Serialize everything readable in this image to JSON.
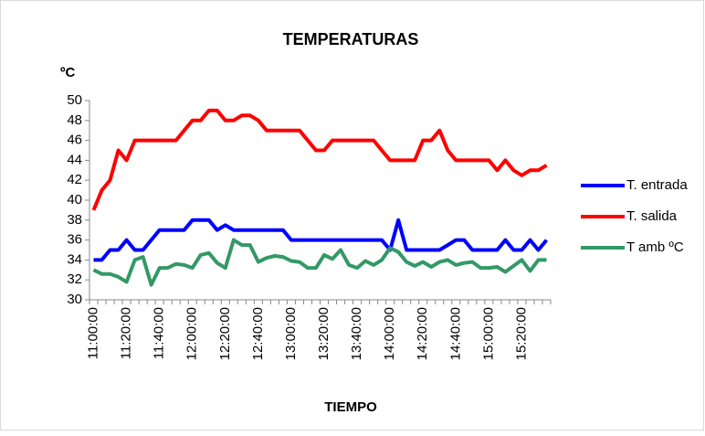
{
  "chart_data": {
    "type": "line",
    "title": "TEMPERATURAS",
    "y_axis_label": "ºC",
    "x_axis_label": "TIEMPO",
    "categories": [
      "11:00:00",
      null,
      null,
      null,
      "11:20:00",
      null,
      null,
      null,
      "11:40:00",
      null,
      null,
      null,
      "12:00:00",
      null,
      null,
      null,
      "12:20:00",
      null,
      null,
      null,
      "12:40:00",
      null,
      null,
      null,
      "13:00:00",
      null,
      null,
      null,
      "13:20:00",
      null,
      null,
      null,
      "13:40:00",
      null,
      null,
      null,
      "14:00:00",
      null,
      null,
      null,
      "14:20:00",
      null,
      null,
      null,
      "14:40:00",
      null,
      null,
      null,
      "15:00:00",
      null,
      null,
      null,
      "15:20:00",
      null,
      null,
      null
    ],
    "series": [
      {
        "name": "T. entrada",
        "color": "#0000ff",
        "values": [
          34,
          34,
          35,
          35,
          36,
          35,
          35,
          36,
          37,
          37,
          37,
          37,
          38,
          38,
          38,
          37,
          37.5,
          37,
          37,
          37,
          37,
          37,
          37,
          37,
          36,
          36,
          36,
          36,
          36,
          36,
          36,
          36,
          36,
          36,
          36,
          36,
          35,
          38,
          35,
          35,
          35,
          35,
          35,
          35.5,
          36,
          36,
          35,
          35,
          35,
          35,
          36,
          35,
          35,
          36,
          35,
          36
        ]
      },
      {
        "name": "T. salida",
        "color": "#ff0000",
        "values": [
          39,
          41,
          42,
          45,
          44,
          46,
          46,
          46,
          46,
          46,
          46,
          47,
          48,
          48,
          49,
          49,
          48,
          48,
          48.5,
          48.5,
          48,
          47,
          47,
          47,
          47,
          47,
          46,
          45,
          45,
          46,
          46,
          46,
          46,
          46,
          46,
          45,
          44,
          44,
          44,
          44,
          46,
          46,
          47,
          45,
          44,
          44,
          44,
          44,
          44,
          43,
          44,
          43,
          42.5,
          43,
          43,
          43.5
        ]
      },
      {
        "name": "T amb  ºC",
        "color": "#339966",
        "values": [
          33,
          32.6,
          32.6,
          32.3,
          31.8,
          34,
          34.3,
          31.5,
          33.2,
          33.2,
          33.6,
          33.5,
          33.2,
          34.5,
          34.7,
          33.7,
          33.2,
          36,
          35.5,
          35.5,
          33.8,
          34.2,
          34.4,
          34.3,
          33.9,
          33.8,
          33.2,
          33.2,
          34.5,
          34.1,
          35,
          33.5,
          33.2,
          33.9,
          33.5,
          34,
          35.2,
          34.8,
          33.8,
          33.4,
          33.8,
          33.3,
          33.8,
          34,
          33.5,
          33.7,
          33.8,
          33.2,
          33.2,
          33.3,
          32.8,
          33.4,
          34,
          32.9,
          34,
          34
        ]
      }
    ],
    "ylim": [
      30,
      50
    ],
    "yticks": [
      30,
      32,
      34,
      36,
      38,
      40,
      42,
      44,
      46,
      48,
      50
    ],
    "grid": false,
    "legend": "right"
  }
}
